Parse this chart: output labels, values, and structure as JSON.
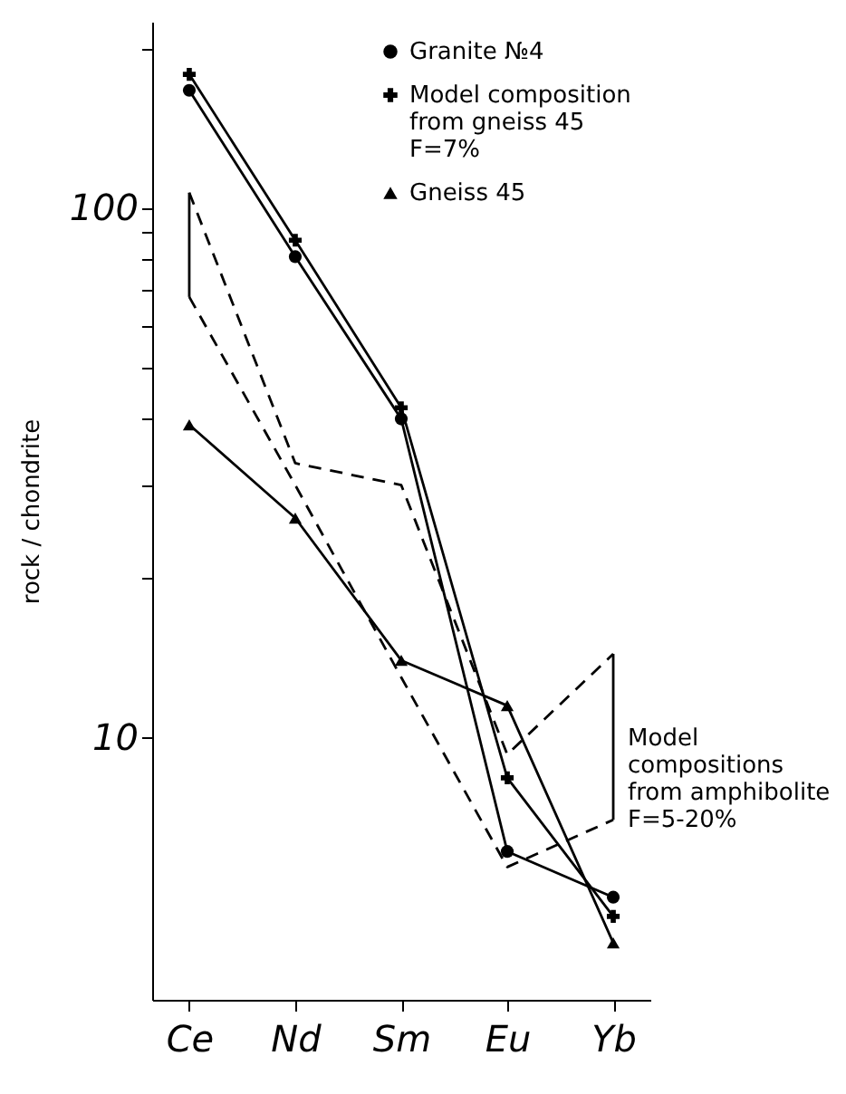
{
  "chart_data": {
    "type": "line",
    "ylabel": "rock / chondrite",
    "categories": [
      "Ce",
      "Nd",
      "Sm",
      "Eu",
      "Yb"
    ],
    "log": true,
    "ylim": [
      3.2,
      225
    ],
    "yticks": [
      10,
      {
        "value": 20,
        "label": null
      },
      {
        "value": 30,
        "label": null
      },
      {
        "value": 40,
        "label": null
      },
      {
        "value": 50,
        "label": null
      },
      {
        "value": 60,
        "label": null
      },
      {
        "value": 70,
        "label": null
      },
      {
        "value": 80,
        "label": null
      },
      {
        "value": 90,
        "label": null
      },
      100,
      {
        "value": 200,
        "label": null
      }
    ],
    "grid": false,
    "legend": "top right",
    "series": [
      {
        "name": "Granite №4",
        "color": "#000000",
        "marker": "circle",
        "line_style": "solid",
        "values": [
          167,
          81,
          40,
          6.1,
          5.0
        ]
      },
      {
        "name": "Model composition\nfrom gneiss 45\nF=7%",
        "color": "#000000",
        "marker": "cross",
        "line_style": "solid",
        "values": [
          179,
          87,
          42,
          8.4,
          4.6
        ]
      },
      {
        "name": "Gneiss 45",
        "color": "#000000",
        "marker": "triangle",
        "line_style": "solid",
        "values": [
          39,
          26,
          14,
          11.5,
          4.1
        ]
      },
      {
        "color": "#000000",
        "marker": "none",
        "line_style": "dashed",
        "values": [
          107,
          33,
          30,
          9.3,
          14.4
        ]
      },
      {
        "color": "#000000",
        "marker": "none",
        "line_style": "dashed",
        "values": [
          68,
          30,
          13,
          5.7,
          7.0
        ]
      },
      {
        "color": "#000000",
        "marker": "none",
        "line_style": "solid",
        "x": [
          "Ce",
          "Ce"
        ],
        "values": [
          107,
          68
        ]
      },
      {
        "color": "#000000",
        "marker": "none",
        "line_style": "solid",
        "x": [
          "Yb",
          "Yb"
        ],
        "values": [
          14.4,
          7.0
        ]
      }
    ],
    "annotations": [
      {
        "text": "Model\ncompositions\nfrom amphibolite\nF=5-20%",
        "x": "Yb",
        "y": 10
      }
    ]
  }
}
